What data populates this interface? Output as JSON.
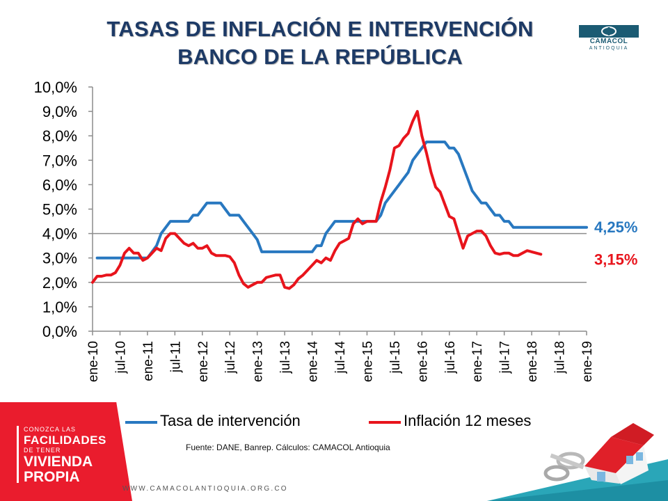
{
  "header": {
    "title_line1": "TASAS DE INFLACIÓN E INTERVENCIÓN",
    "title_line2": "BANCO DE LA REPÚBLICA",
    "logo_name": "CAMACOL",
    "logo_sub": "ANTIOQUIA"
  },
  "chart_data": {
    "type": "line",
    "title": "TASAS DE INFLACIÓN E INTERVENCIÓN BANCO DE LA REPÚBLICA",
    "ylim": [
      0,
      10
    ],
    "y_ticks": [
      "0,0%",
      "1,0%",
      "2,0%",
      "3,0%",
      "4,0%",
      "5,0%",
      "6,0%",
      "7,0%",
      "8,0%",
      "9,0%",
      "10,0%"
    ],
    "x_ticks": [
      "ene-10",
      "jul-10",
      "ene-11",
      "jul-11",
      "ene-12",
      "jul-12",
      "ene-13",
      "jul-13",
      "ene-14",
      "jul-14",
      "ene-15",
      "jul-15",
      "ene-16",
      "jul-16",
      "ene-17",
      "jul-17",
      "ene-18",
      "jul-18",
      "ene-19"
    ],
    "x_unit": "months since ene-10",
    "reference_lines": [
      2,
      4
    ],
    "series": [
      {
        "name": "Tasa de intervención",
        "color": "#2878c0",
        "end_label": "4,25%",
        "points": [
          [
            1,
            3.0
          ],
          [
            6,
            3.0
          ],
          [
            7,
            3.0
          ],
          [
            8,
            3.0
          ],
          [
            10,
            3.0
          ],
          [
            12,
            3.0
          ],
          [
            13,
            3.25
          ],
          [
            14,
            3.5
          ],
          [
            15,
            4.0
          ],
          [
            16,
            4.25
          ],
          [
            17,
            4.5
          ],
          [
            18,
            4.5
          ],
          [
            19,
            4.5
          ],
          [
            20,
            4.5
          ],
          [
            21,
            4.5
          ],
          [
            22,
            4.75
          ],
          [
            23,
            4.75
          ],
          [
            24,
            5.0
          ],
          [
            25,
            5.25
          ],
          [
            26,
            5.25
          ],
          [
            27,
            5.25
          ],
          [
            28,
            5.25
          ],
          [
            29,
            5.0
          ],
          [
            30,
            4.75
          ],
          [
            31,
            4.75
          ],
          [
            32,
            4.75
          ],
          [
            33,
            4.5
          ],
          [
            34,
            4.25
          ],
          [
            35,
            4.0
          ],
          [
            36,
            3.75
          ],
          [
            37,
            3.25
          ],
          [
            38,
            3.25
          ],
          [
            39,
            3.25
          ],
          [
            47,
            3.25
          ],
          [
            48,
            3.25
          ],
          [
            49,
            3.5
          ],
          [
            50,
            3.5
          ],
          [
            51,
            4.0
          ],
          [
            52,
            4.25
          ],
          [
            53,
            4.5
          ],
          [
            54,
            4.5
          ],
          [
            55,
            4.5
          ],
          [
            62,
            4.5
          ],
          [
            63,
            4.75
          ],
          [
            64,
            5.25
          ],
          [
            65,
            5.5
          ],
          [
            66,
            5.75
          ],
          [
            67,
            6.0
          ],
          [
            68,
            6.25
          ],
          [
            69,
            6.5
          ],
          [
            70,
            7.0
          ],
          [
            71,
            7.25
          ],
          [
            72,
            7.5
          ],
          [
            73,
            7.75
          ],
          [
            74,
            7.75
          ],
          [
            77,
            7.75
          ],
          [
            78,
            7.5
          ],
          [
            79,
            7.5
          ],
          [
            80,
            7.25
          ],
          [
            81,
            6.75
          ],
          [
            82,
            6.25
          ],
          [
            83,
            5.75
          ],
          [
            84,
            5.5
          ],
          [
            85,
            5.25
          ],
          [
            86,
            5.25
          ],
          [
            87,
            5.0
          ],
          [
            88,
            4.75
          ],
          [
            89,
            4.75
          ],
          [
            90,
            4.5
          ],
          [
            91,
            4.5
          ],
          [
            92,
            4.25
          ],
          [
            93,
            4.25
          ],
          [
            108,
            4.25
          ]
        ]
      },
      {
        "name": "Inflación 12 meses",
        "color": "#e8141c",
        "end_label": "3,15%",
        "points": [
          [
            0,
            2.0
          ],
          [
            1,
            2.25
          ],
          [
            2,
            2.25
          ],
          [
            3,
            2.3
          ],
          [
            4,
            2.3
          ],
          [
            5,
            2.4
          ],
          [
            6,
            2.7
          ],
          [
            7,
            3.2
          ],
          [
            8,
            3.4
          ],
          [
            9,
            3.2
          ],
          [
            10,
            3.2
          ],
          [
            11,
            2.9
          ],
          [
            12,
            3.0
          ],
          [
            13,
            3.2
          ],
          [
            14,
            3.4
          ],
          [
            15,
            3.3
          ],
          [
            16,
            3.8
          ],
          [
            17,
            4.0
          ],
          [
            18,
            4.0
          ],
          [
            19,
            3.8
          ],
          [
            20,
            3.6
          ],
          [
            21,
            3.5
          ],
          [
            22,
            3.6
          ],
          [
            23,
            3.4
          ],
          [
            24,
            3.4
          ],
          [
            25,
            3.5
          ],
          [
            26,
            3.2
          ],
          [
            27,
            3.1
          ],
          [
            28,
            3.1
          ],
          [
            29,
            3.1
          ],
          [
            30,
            3.05
          ],
          [
            31,
            2.8
          ],
          [
            32,
            2.3
          ],
          [
            33,
            1.95
          ],
          [
            34,
            1.8
          ],
          [
            35,
            1.9
          ],
          [
            36,
            2.0
          ],
          [
            37,
            2.0
          ],
          [
            38,
            2.2
          ],
          [
            39,
            2.25
          ],
          [
            40,
            2.3
          ],
          [
            41,
            2.3
          ],
          [
            42,
            1.8
          ],
          [
            43,
            1.75
          ],
          [
            44,
            1.9
          ],
          [
            45,
            2.15
          ],
          [
            46,
            2.3
          ],
          [
            47,
            2.5
          ],
          [
            48,
            2.7
          ],
          [
            49,
            2.9
          ],
          [
            50,
            2.8
          ],
          [
            51,
            3.0
          ],
          [
            52,
            2.9
          ],
          [
            53,
            3.3
          ],
          [
            54,
            3.6
          ],
          [
            55,
            3.7
          ],
          [
            56,
            3.8
          ],
          [
            57,
            4.4
          ],
          [
            58,
            4.6
          ],
          [
            59,
            4.4
          ],
          [
            60,
            4.5
          ],
          [
            61,
            4.5
          ],
          [
            62,
            4.5
          ],
          [
            63,
            5.3
          ],
          [
            64,
            5.9
          ],
          [
            65,
            6.6
          ],
          [
            66,
            7.5
          ],
          [
            67,
            7.6
          ],
          [
            68,
            7.9
          ],
          [
            69,
            8.1
          ],
          [
            70,
            8.6
          ],
          [
            71,
            9.0
          ],
          [
            72,
            8.0
          ],
          [
            73,
            7.3
          ],
          [
            74,
            6.5
          ],
          [
            75,
            5.9
          ],
          [
            76,
            5.7
          ],
          [
            77,
            5.2
          ],
          [
            78,
            4.7
          ],
          [
            79,
            4.6
          ],
          [
            80,
            4.0
          ],
          [
            81,
            3.4
          ],
          [
            82,
            3.9
          ],
          [
            83,
            4.0
          ],
          [
            84,
            4.1
          ],
          [
            85,
            4.1
          ],
          [
            86,
            3.9
          ],
          [
            87,
            3.5
          ],
          [
            88,
            3.2
          ],
          [
            89,
            3.15
          ],
          [
            90,
            3.2
          ],
          [
            91,
            3.2
          ],
          [
            92,
            3.1
          ],
          [
            93,
            3.1
          ],
          [
            94,
            3.2
          ],
          [
            95,
            3.3
          ],
          [
            96,
            3.25
          ],
          [
            97,
            3.2
          ],
          [
            98,
            3.15
          ]
        ]
      }
    ],
    "source_note": "Fuente: DANE, Banrep. Cálculos: CAMACOL Antioquia"
  },
  "promo": {
    "line1": "CONOZCA LAS",
    "line2": "FACILIDADES",
    "line3": "DE TENER",
    "line4": "VIVIENDA",
    "line5": "PROPIA"
  },
  "footer": {
    "website": "WWW.CAMACOLANTIOQUIA.ORG.CO"
  }
}
